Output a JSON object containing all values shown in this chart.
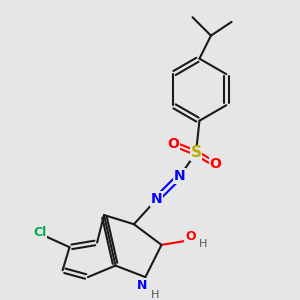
{
  "bg_color": "#e6e6e6",
  "bond_color": "#1a1a1a",
  "bond_lw": 1.5,
  "xlim": [
    30,
    270
  ],
  "ylim": [
    30,
    285
  ]
}
